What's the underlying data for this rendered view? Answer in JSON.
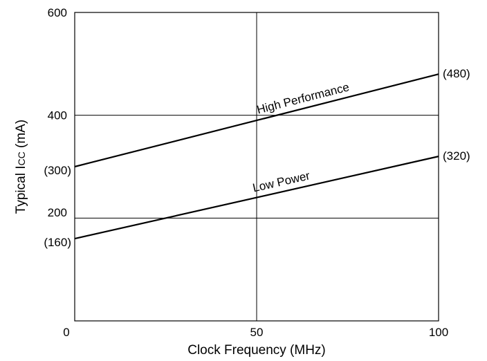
{
  "chart_data": {
    "type": "line",
    "title": "",
    "xlabel": "Clock Frequency (MHz)",
    "ylabel": "Typical I",
    "ylabel_subscript": "CC",
    "ylabel_unit": " (mA)",
    "xlim": [
      0,
      100
    ],
    "ylim": [
      0,
      600
    ],
    "x_ticks": [
      {
        "value": 0,
        "label": "0"
      },
      {
        "value": 50,
        "label": "50"
      },
      {
        "value": 100,
        "label": "100"
      }
    ],
    "y_ticks": [
      {
        "value": 200,
        "label": "200"
      },
      {
        "value": 400,
        "label": "400"
      },
      {
        "value": 600,
        "label": "600"
      }
    ],
    "grid": true,
    "grid_lines": {
      "x": [
        50
      ],
      "y": [
        200,
        400
      ]
    },
    "line_color": "#000000",
    "series": [
      {
        "name": "High Performance",
        "x": [
          0,
          100
        ],
        "y": [
          300,
          480
        ],
        "start_label": "(300)",
        "end_label": "(480)"
      },
      {
        "name": "Low Power",
        "x": [
          0,
          100
        ],
        "y": [
          160,
          320
        ],
        "start_label": "(160)",
        "end_label": "(320)"
      }
    ]
  }
}
